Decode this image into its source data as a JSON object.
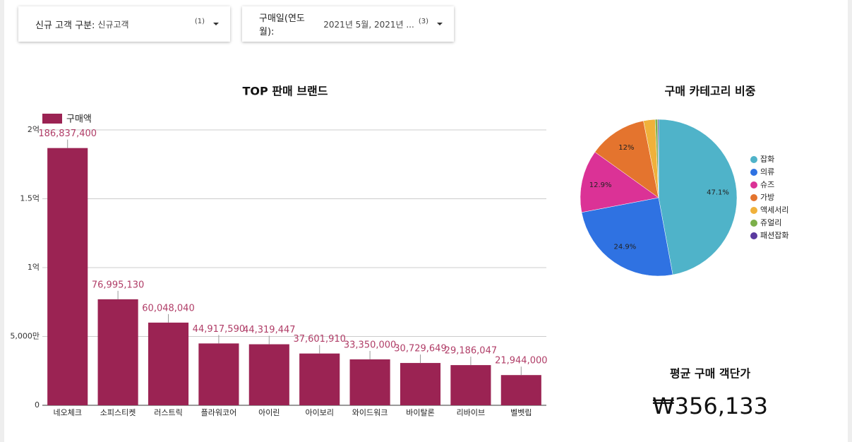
{
  "filters": [
    {
      "label": "신규 고객 구분:",
      "value": "신규고객",
      "count": "(1)"
    },
    {
      "label": "구매일(연도 월):",
      "value": "2021년 5월, 2021년 ...",
      "count": "(3)"
    }
  ],
  "chart_data": [
    {
      "type": "bar",
      "title": "TOP 판매 브랜드",
      "categories": [
        "네오체크",
        "소피스티켓",
        "러스트릭",
        "플라워코어",
        "아이린",
        "아이보리",
        "와이드워크",
        "바이탈론",
        "리바이브",
        "벨벳립"
      ],
      "series": [
        {
          "name": "구매액",
          "color": "#9b2353",
          "values": [
            186837400,
            76995130,
            60048040,
            44917590,
            44319447,
            37601910,
            33350000,
            30729649,
            29186047,
            21944000
          ],
          "value_labels": [
            "186,837,400",
            "76,995,130",
            "60,048,040",
            "44,917,590",
            "44,319,447",
            "37,601,910",
            "33,350,000",
            "30,729,649",
            "29,186,047",
            "21,944,000"
          ]
        }
      ],
      "ylim": [
        0,
        200000000
      ],
      "yticks": [
        0,
        {
          "value": 50000000,
          "label": "5,000만"
        },
        {
          "value": 100000000,
          "label": "1억"
        },
        {
          "value": 150000000,
          "label": "1.5억"
        },
        {
          "value": 200000000,
          "label": "2억"
        }
      ],
      "grid": true,
      "legend": "top-left"
    },
    {
      "type": "pie",
      "title": "구매 카테고리 비중",
      "categories": [
        "잡화",
        "의류",
        "슈즈",
        "가방",
        "액세서리",
        "쥬얼리",
        "패션잡화"
      ],
      "values": [
        47.1,
        24.9,
        12.9,
        12,
        2.4,
        0.5,
        0.2
      ],
      "value_labels": [
        "47.1%",
        "24.9%",
        "12.9%",
        "12%",
        null,
        null,
        null
      ],
      "colors": [
        "#4fb3c9",
        "#2f72e2",
        "#db3296",
        "#e4742e",
        "#f0b13b",
        "#7cb04a",
        "#5a3a9f"
      ],
      "legend": "right"
    }
  ],
  "scorecard": {
    "title": "평균 구매 객단가",
    "value": "₩356,133"
  }
}
